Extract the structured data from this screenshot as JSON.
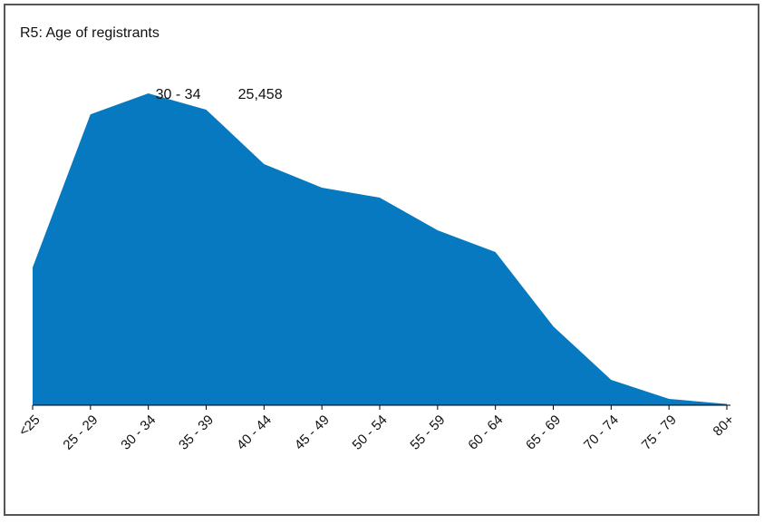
{
  "chart_data": {
    "type": "area",
    "title": "R5: Age of registrants",
    "categories": [
      "<25",
      "25 - 29",
      "30 - 34",
      "35 - 39",
      "40 - 44",
      "45 - 49",
      "50 - 54",
      "55 - 59",
      "60 - 64",
      "65 - 69",
      "70 - 74",
      "75 - 79",
      "80+"
    ],
    "values": [
      11250,
      23750,
      25458,
      24130,
      19690,
      17760,
      16950,
      14280,
      12510,
      6440,
      2070,
      520,
      100
    ],
    "value_labels": [
      null,
      null,
      "25,458",
      null,
      null,
      null,
      null,
      null,
      null,
      null,
      null,
      null,
      null
    ],
    "color": "#0679c1"
  }
}
